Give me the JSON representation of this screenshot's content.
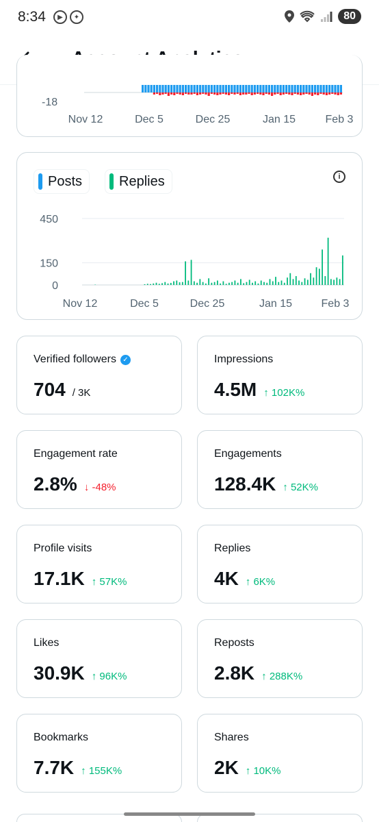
{
  "status_bar": {
    "time": "8:34",
    "battery": "80",
    "icons": [
      "media-icon",
      "accessibility-icon",
      "location-icon",
      "wifi-icon",
      "signal-icon"
    ]
  },
  "header": {
    "title": "Account Analytics",
    "back_icon": "arrow-left-icon"
  },
  "colors": {
    "posts": "#1d9bf0",
    "replies": "#00ba7c",
    "negative": "#f4212e",
    "up": "#00ba7c",
    "down": "#f4212e"
  },
  "chart_data": [
    {
      "type": "bar",
      "title": "",
      "y_tick_labels": [
        "-18"
      ],
      "x_tick_labels": [
        "Nov 12",
        "Dec 5",
        "Dec 25",
        "Jan 15",
        "Feb 3"
      ],
      "series": [
        {
          "values": [
            1,
            1,
            1,
            1,
            1,
            1,
            1,
            1,
            1,
            1,
            1,
            1,
            1,
            1,
            1,
            1,
            1,
            1,
            1,
            1,
            1,
            1,
            1,
            1,
            1,
            1,
            1,
            1,
            1,
            1,
            1,
            1,
            1,
            1,
            1,
            1,
            1,
            1,
            1,
            1,
            1,
            1,
            1,
            1,
            1,
            1,
            1,
            1,
            1,
            1,
            1,
            1,
            1,
            1,
            1,
            1,
            1,
            1,
            1,
            1,
            1,
            1,
            1,
            1,
            1,
            1,
            1,
            1,
            1,
            1,
            1,
            1,
            1,
            1,
            1,
            1,
            1,
            1,
            1,
            1,
            1,
            1,
            1,
            1,
            1,
            1,
            1,
            1,
            1,
            1
          ]
        },
        {
          "values": [
            0,
            0,
            0,
            0,
            0,
            0,
            0,
            0,
            0,
            0,
            0,
            0,
            0,
            0,
            0,
            0,
            0,
            0,
            0,
            0,
            0,
            0,
            0,
            0,
            -3,
            -2,
            -4,
            -3,
            -2,
            -5,
            -3,
            -4,
            -2,
            -3,
            -4,
            -2,
            -3,
            -3,
            -2,
            -4,
            -3,
            -2,
            -3,
            -5,
            -2,
            -3,
            -4,
            -3,
            -2,
            -3,
            -4,
            -2,
            -3,
            -2,
            -4,
            -3,
            -3,
            -2,
            -4,
            -3,
            -2,
            -3,
            -4,
            -2,
            -3,
            -5,
            -3,
            -2,
            -4,
            -3,
            -2,
            -3,
            -4,
            -2,
            -3,
            -4,
            -3,
            -2,
            -3,
            -5,
            -3,
            -4,
            -2,
            -3,
            -4,
            -3,
            -2,
            -3,
            -4,
            -3
          ]
        }
      ]
    },
    {
      "type": "bar",
      "title": "",
      "x_tick_labels": [
        "Nov 12",
        "Dec 5",
        "Dec 25",
        "Jan 15",
        "Feb 3"
      ],
      "y_ticks": [
        0,
        150,
        450
      ],
      "ylim": [
        0,
        450
      ],
      "series": [
        {
          "name": "Posts",
          "values": [
            0,
            0,
            0,
            0,
            0,
            0,
            0,
            0,
            0,
            0,
            0,
            0,
            0,
            0,
            0,
            0,
            0,
            0,
            0,
            0,
            0,
            0,
            0,
            0,
            0,
            0,
            0,
            0,
            0,
            0,
            0,
            0,
            0,
            0,
            0,
            0,
            0,
            0,
            0,
            0,
            0,
            0,
            0,
            0,
            0,
            0,
            0,
            0,
            0,
            0,
            0,
            0,
            0,
            0,
            0,
            0,
            0,
            0,
            0,
            0,
            0,
            0,
            0,
            0,
            0,
            0,
            0,
            0,
            0,
            0,
            0,
            0,
            0,
            0,
            0,
            0,
            0,
            0,
            0,
            0,
            0,
            0,
            0,
            0,
            0,
            0,
            0,
            0,
            0,
            0
          ]
        },
        {
          "name": "Replies",
          "values": [
            0,
            0,
            0,
            0,
            2,
            0,
            0,
            0,
            0,
            0,
            0,
            0,
            0,
            0,
            0,
            0,
            0,
            0,
            0,
            0,
            0,
            5,
            8,
            6,
            10,
            15,
            8,
            12,
            20,
            10,
            14,
            25,
            30,
            18,
            20,
            160,
            30,
            170,
            25,
            15,
            40,
            20,
            10,
            45,
            15,
            20,
            30,
            10,
            25,
            8,
            15,
            20,
            30,
            15,
            40,
            12,
            20,
            35,
            15,
            25,
            10,
            30,
            20,
            15,
            40,
            25,
            55,
            20,
            30,
            15,
            50,
            80,
            40,
            60,
            30,
            20,
            45,
            35,
            80,
            50,
            120,
            110,
            240,
            60,
            320,
            40,
            35,
            50,
            40,
            200
          ]
        }
      ]
    }
  ],
  "legend": {
    "posts_label": "Posts",
    "replies_label": "Replies"
  },
  "metrics": [
    {
      "label": "Verified followers",
      "value": "704",
      "sub": "/ 3K",
      "change": "",
      "direction": "none",
      "verified_icon": true
    },
    {
      "label": "Impressions",
      "value": "4.5M",
      "sub": "",
      "change": "↑ 102K%",
      "direction": "up"
    },
    {
      "label": "Engagement rate",
      "value": "2.8%",
      "sub": "",
      "change": "↓ -48%",
      "direction": "down"
    },
    {
      "label": "Engagements",
      "value": "128.4K",
      "sub": "",
      "change": "↑ 52K%",
      "direction": "up"
    },
    {
      "label": "Profile visits",
      "value": "17.1K",
      "sub": "",
      "change": "↑ 57K%",
      "direction": "up"
    },
    {
      "label": "Replies",
      "value": "4K",
      "sub": "",
      "change": "↑ 6K%",
      "direction": "up"
    },
    {
      "label": "Likes",
      "value": "30.9K",
      "sub": "",
      "change": "↑ 96K%",
      "direction": "up"
    },
    {
      "label": "Reposts",
      "value": "2.8K",
      "sub": "",
      "change": "↑ 288K%",
      "direction": "up"
    },
    {
      "label": "Bookmarks",
      "value": "7.7K",
      "sub": "",
      "change": "↑ 155K%",
      "direction": "up"
    },
    {
      "label": "Shares",
      "value": "2K",
      "sub": "",
      "change": "↑ 10K%",
      "direction": "up"
    }
  ]
}
